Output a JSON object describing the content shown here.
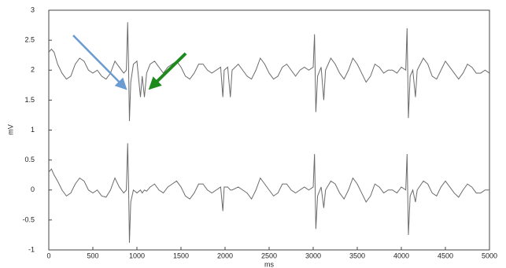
{
  "chart_data": {
    "type": "line",
    "xlabel": "ms",
    "ylabel": "mV",
    "x": [
      0,
      30,
      60,
      100,
      150,
      200,
      250,
      300,
      350,
      400,
      450,
      500,
      550,
      600,
      650,
      700,
      750,
      800,
      850,
      880,
      895,
      905,
      915,
      930,
      960,
      1000,
      1040,
      1060,
      1085,
      1110,
      1150,
      1200,
      1250,
      1300,
      1350,
      1400,
      1450,
      1500,
      1550,
      1600,
      1650,
      1700,
      1750,
      1800,
      1850,
      1900,
      1950,
      1975,
      1990,
      2030,
      2060,
      2080,
      2150,
      2200,
      2250,
      2300,
      2350,
      2400,
      2450,
      2500,
      2550,
      2600,
      2650,
      2700,
      2750,
      2800,
      2850,
      2900,
      2950,
      3000,
      3015,
      3030,
      3050,
      3090,
      3120,
      3140,
      3200,
      3250,
      3300,
      3350,
      3400,
      3450,
      3500,
      3550,
      3600,
      3650,
      3700,
      3750,
      3800,
      3850,
      3900,
      3950,
      4000,
      4050,
      4065,
      4080,
      4100,
      4130,
      4160,
      4180,
      4250,
      4300,
      4350,
      4400,
      4450,
      4500,
      4550,
      4600,
      4650,
      4700,
      4750,
      4800,
      4850,
      4900,
      4950,
      5000
    ],
    "series": [
      {
        "color": "#6b6b6b",
        "values": [
          2.3,
          2.35,
          2.3,
          2.1,
          1.95,
          1.85,
          1.9,
          2.1,
          2.2,
          2.15,
          2.0,
          1.95,
          2.0,
          1.9,
          1.85,
          1.95,
          2.15,
          2.05,
          1.95,
          2.0,
          2.8,
          2.1,
          1.15,
          1.8,
          2.1,
          2.15,
          1.55,
          1.9,
          1.55,
          1.95,
          2.1,
          2.15,
          2.05,
          1.95,
          2.05,
          2.1,
          2.15,
          2.05,
          1.9,
          1.85,
          1.95,
          2.1,
          2.1,
          2.0,
          1.95,
          2.0,
          2.05,
          1.55,
          2.0,
          2.05,
          1.55,
          2.0,
          2.1,
          2.0,
          1.9,
          1.85,
          2.0,
          2.2,
          2.1,
          1.95,
          1.85,
          1.9,
          2.05,
          2.1,
          2.0,
          1.9,
          2.0,
          2.05,
          2.0,
          2.05,
          2.6,
          1.3,
          1.9,
          2.05,
          1.5,
          2.0,
          2.2,
          2.1,
          1.95,
          1.85,
          2.0,
          2.2,
          2.1,
          1.95,
          1.8,
          1.9,
          2.1,
          2.05,
          1.95,
          2.0,
          2.0,
          1.95,
          2.05,
          2.0,
          2.7,
          1.2,
          1.9,
          2.0,
          1.55,
          2.0,
          2.2,
          2.1,
          1.9,
          1.85,
          2.0,
          2.15,
          2.05,
          1.95,
          1.85,
          1.95,
          2.1,
          2.05,
          1.95,
          1.95,
          2.0,
          1.95
        ]
      },
      {
        "color": "#6b6b6b",
        "values": [
          0.3,
          0.35,
          0.25,
          0.15,
          0.0,
          -0.1,
          -0.05,
          0.1,
          0.2,
          0.15,
          0.0,
          -0.05,
          0.0,
          -0.1,
          -0.12,
          0.0,
          0.2,
          0.05,
          -0.05,
          0.0,
          0.78,
          0.1,
          -0.88,
          -0.2,
          0.0,
          -0.05,
          0.0,
          -0.05,
          0.0,
          -0.02,
          0.05,
          0.1,
          0.0,
          -0.05,
          0.05,
          0.1,
          0.15,
          0.05,
          -0.1,
          -0.15,
          -0.05,
          0.1,
          0.1,
          0.0,
          -0.05,
          0.0,
          0.05,
          -0.35,
          0.05,
          0.05,
          0.0,
          0.0,
          0.05,
          0.0,
          -0.05,
          -0.15,
          0.0,
          0.2,
          0.1,
          0.0,
          -0.1,
          -0.05,
          0.1,
          0.1,
          0.0,
          -0.05,
          0.0,
          0.05,
          0.0,
          0.05,
          0.6,
          -0.65,
          -0.1,
          0.05,
          -0.3,
          0.0,
          0.15,
          0.1,
          -0.05,
          -0.15,
          0.0,
          0.2,
          0.1,
          -0.05,
          -0.2,
          -0.1,
          0.1,
          0.05,
          -0.05,
          0.0,
          0.0,
          -0.05,
          0.05,
          0.0,
          0.6,
          -0.75,
          -0.1,
          0.0,
          -0.2,
          0.0,
          0.15,
          0.1,
          -0.05,
          -0.1,
          0.05,
          0.15,
          0.05,
          -0.05,
          -0.12,
          0.0,
          0.1,
          0.05,
          -0.05,
          -0.05,
          0.0,
          0.0
        ]
      }
    ],
    "xlim": [
      0,
      5000
    ],
    "xticks": [
      0,
      500,
      1000,
      1500,
      2000,
      2500,
      3000,
      3500,
      4000,
      4500,
      5000
    ],
    "ylim": [
      -1,
      3
    ],
    "yticks": [
      -1,
      -0.5,
      0,
      0.5,
      1,
      1.5,
      2,
      2.5,
      3
    ]
  }
}
